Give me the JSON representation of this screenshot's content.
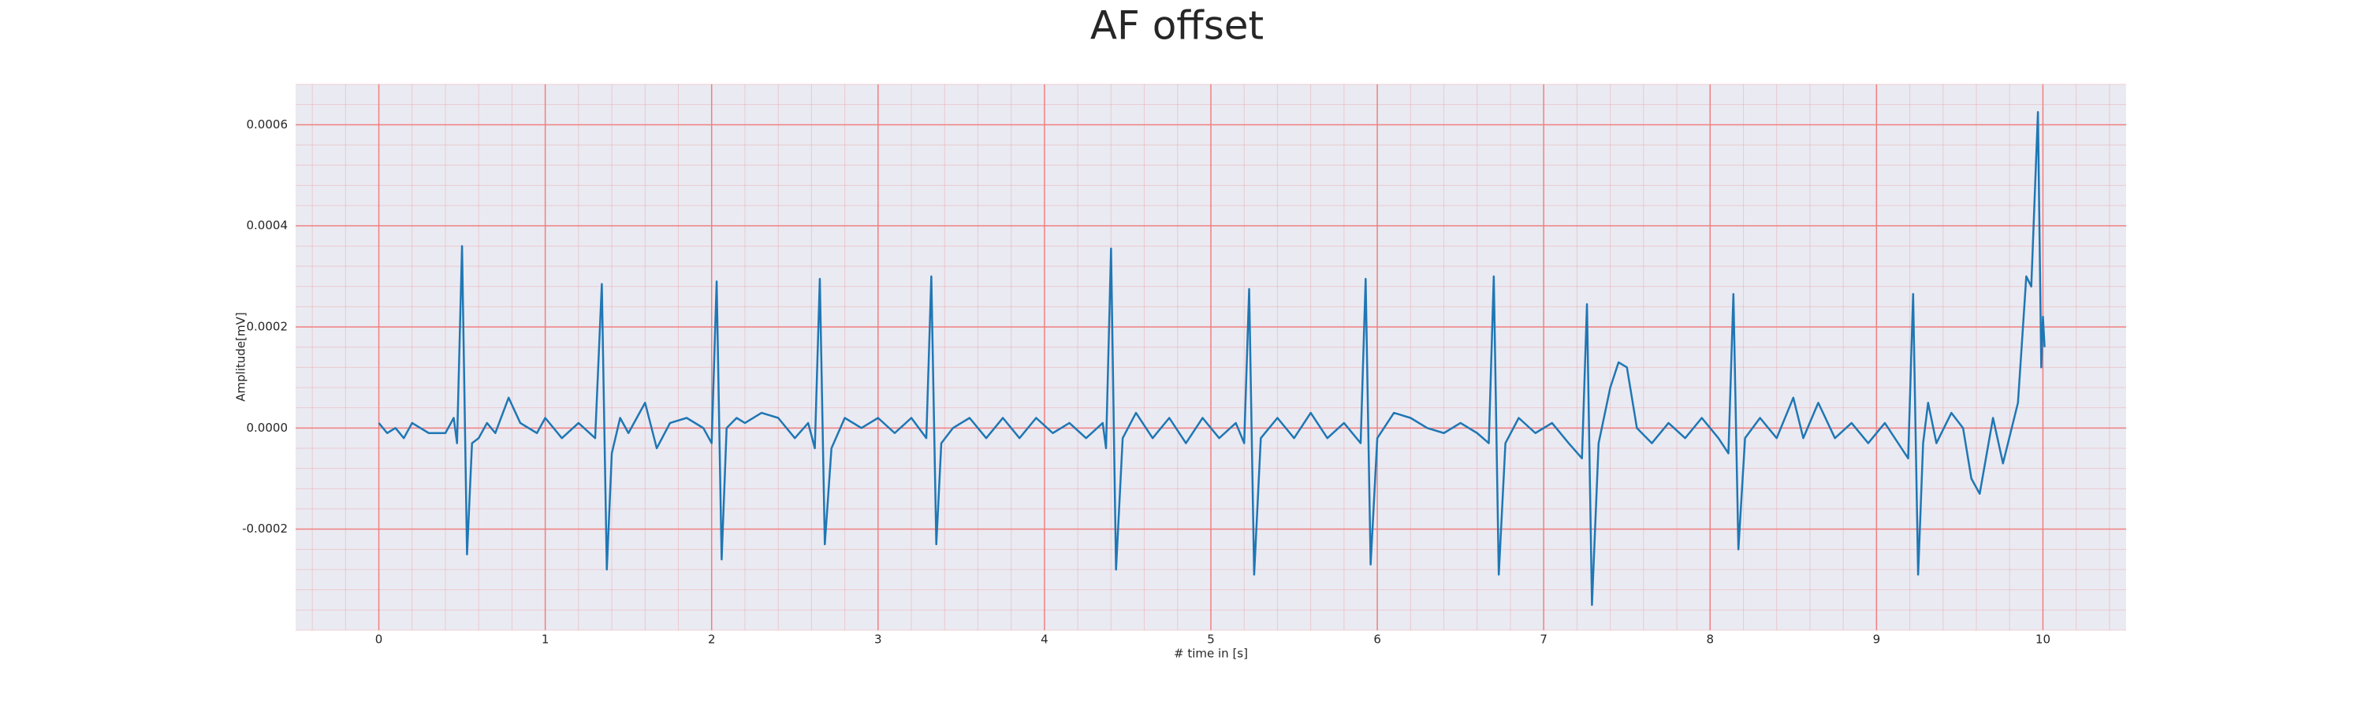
{
  "chart_data": {
    "type": "line",
    "title": "AF offset",
    "xlabel": "# time in [s]",
    "ylabel": "Amplitude[mV]",
    "x": [
      0.0,
      0.05,
      0.1,
      0.15,
      0.2,
      0.3,
      0.4,
      0.45,
      0.47,
      0.5,
      0.53,
      0.56,
      0.6,
      0.65,
      0.7,
      0.78,
      0.85,
      0.95,
      1.0,
      1.1,
      1.2,
      1.3,
      1.34,
      1.37,
      1.4,
      1.45,
      1.5,
      1.6,
      1.67,
      1.75,
      1.85,
      1.95,
      2.0,
      2.03,
      2.06,
      2.09,
      2.15,
      2.2,
      2.3,
      2.4,
      2.5,
      2.58,
      2.62,
      2.65,
      2.68,
      2.72,
      2.8,
      2.9,
      3.0,
      3.1,
      3.2,
      3.29,
      3.32,
      3.35,
      3.38,
      3.45,
      3.55,
      3.65,
      3.75,
      3.85,
      3.95,
      4.05,
      4.15,
      4.25,
      4.35,
      4.37,
      4.4,
      4.43,
      4.47,
      4.55,
      4.65,
      4.75,
      4.85,
      4.95,
      5.05,
      5.15,
      5.2,
      5.23,
      5.26,
      5.3,
      5.4,
      5.5,
      5.6,
      5.7,
      5.8,
      5.9,
      5.93,
      5.96,
      6.0,
      6.1,
      6.2,
      6.3,
      6.4,
      6.5,
      6.6,
      6.67,
      6.7,
      6.73,
      6.77,
      6.85,
      6.95,
      7.05,
      7.15,
      7.23,
      7.26,
      7.29,
      7.33,
      7.4,
      7.45,
      7.5,
      7.56,
      7.65,
      7.75,
      7.85,
      7.95,
      8.05,
      8.11,
      8.14,
      8.17,
      8.21,
      8.3,
      8.4,
      8.5,
      8.56,
      8.65,
      8.75,
      8.85,
      8.95,
      9.05,
      9.15,
      9.19,
      9.22,
      9.25,
      9.28,
      9.31,
      9.36,
      9.45,
      9.52,
      9.57,
      9.62,
      9.7,
      9.76,
      9.85,
      9.9,
      9.93,
      9.97,
      9.99,
      10.0,
      10.01
    ],
    "series": [
      {
        "name": "AF offset",
        "color": "#1f77b4",
        "values": [
          1e-05,
          -1e-05,
          0.0,
          -2e-05,
          1e-05,
          -1e-05,
          -1e-05,
          2e-05,
          -3e-05,
          0.00036,
          -0.00025,
          -3e-05,
          -2e-05,
          1e-05,
          -1e-05,
          6e-05,
          1e-05,
          -1e-05,
          2e-05,
          -2e-05,
          1e-05,
          -2e-05,
          0.000285,
          -0.00028,
          -5e-05,
          2e-05,
          -1e-05,
          5e-05,
          -4e-05,
          1e-05,
          2e-05,
          0.0,
          -3e-05,
          0.00029,
          -0.00026,
          0.0,
          2e-05,
          1e-05,
          3e-05,
          2e-05,
          -2e-05,
          1e-05,
          -4e-05,
          0.000295,
          -0.00023,
          -4e-05,
          2e-05,
          0.0,
          2e-05,
          -1e-05,
          2e-05,
          -2e-05,
          0.0003,
          -0.00023,
          -3e-05,
          0.0,
          2e-05,
          -2e-05,
          2e-05,
          -2e-05,
          2e-05,
          -1e-05,
          1e-05,
          -2e-05,
          1e-05,
          -4e-05,
          0.000355,
          -0.00028,
          -2e-05,
          3e-05,
          -2e-05,
          2e-05,
          -3e-05,
          2e-05,
          -2e-05,
          1e-05,
          -3e-05,
          0.000275,
          -0.00029,
          -2e-05,
          2e-05,
          -2e-05,
          3e-05,
          -2e-05,
          1e-05,
          -3e-05,
          0.000295,
          -0.00027,
          -2e-05,
          3e-05,
          2e-05,
          0.0,
          -1e-05,
          1e-05,
          -1e-05,
          -3e-05,
          0.0003,
          -0.00029,
          -3e-05,
          2e-05,
          -1e-05,
          1e-05,
          -3e-05,
          -6e-05,
          0.000245,
          -0.00035,
          -3e-05,
          8e-05,
          0.00013,
          0.00012,
          0.0,
          -3e-05,
          1e-05,
          -2e-05,
          2e-05,
          -2e-05,
          -5e-05,
          0.000265,
          -0.00024,
          -2e-05,
          2e-05,
          -2e-05,
          6e-05,
          -2e-05,
          5e-05,
          -2e-05,
          1e-05,
          -3e-05,
          1e-05,
          -4e-05,
          -6e-05,
          0.000265,
          -0.00029,
          -3e-05,
          5e-05,
          -3e-05,
          3e-05,
          0.0,
          -0.0001,
          -0.00013,
          2e-05,
          -7e-05,
          5e-05,
          0.0003,
          0.00028,
          0.000625,
          0.00012,
          0.00022,
          0.00016
        ]
      }
    ],
    "xlim": [
      -0.5,
      10.5
    ],
    "ylim": [
      -0.0004,
      0.00068
    ],
    "xticks": [
      0,
      1,
      2,
      3,
      4,
      5,
      6,
      7,
      8,
      9,
      10
    ],
    "yticks": [
      -0.0002,
      {
        "value": 0,
        "label": "0.0000"
      },
      0.0002,
      0.0004,
      0.0006
    ],
    "grid": true,
    "minor_grid": true,
    "grid_color": "#f08080",
    "background": "#eaeaf2"
  }
}
